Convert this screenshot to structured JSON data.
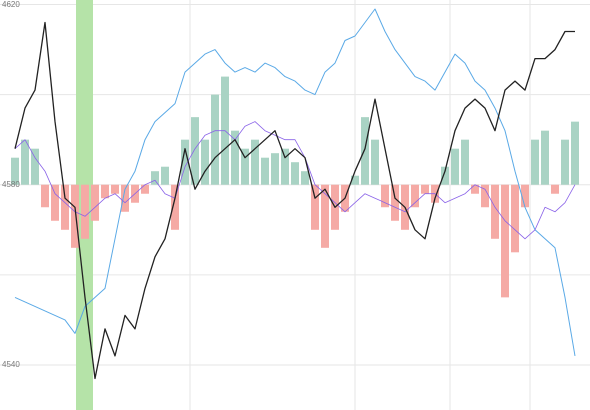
{
  "chart_data": {
    "type": "line",
    "xlim": [
      -1.5,
      57.5
    ],
    "ylim": [
      4530,
      4621
    ],
    "yticks": [
      4540,
      4580,
      4620
    ],
    "grid_yticks": [
      4540,
      4560,
      4580,
      4600,
      4620
    ],
    "xgrid": [
      17.5,
      34,
      43.5,
      51.5
    ],
    "highlight": {
      "range": [
        6.1,
        7.8
      ],
      "color": "#b5e3a8"
    },
    "bars": {
      "base": 4580,
      "up_color": "#a9d3c4",
      "down_color": "#f5aaa5",
      "values": [
        4586,
        4590,
        4588,
        4575,
        4572,
        4570,
        4566,
        4568,
        4572,
        4577,
        4578,
        4574,
        4576,
        4578,
        4583,
        4584,
        4570,
        4590,
        4595,
        4590,
        4600,
        4604,
        4592,
        4588,
        4590,
        4586,
        4587,
        4588,
        4585,
        4583,
        4570,
        4566,
        4570,
        4574,
        4582,
        4595,
        4590,
        4575,
        4572,
        4570,
        4575,
        4578,
        4576,
        4584,
        4588,
        4590,
        4578,
        4575,
        4568,
        4555,
        4565,
        4575,
        4590,
        4592,
        4578,
        4590,
        4594
      ]
    },
    "series": [
      {
        "color": "#5aa9e6",
        "width": 1,
        "values": [
          4555,
          4554,
          4553,
          4552,
          4551,
          4550,
          4547,
          4553,
          4555,
          4557,
          4568,
          4579,
          4583,
          4590,
          4594,
          4596,
          4598,
          4605,
          4607,
          4609,
          4610,
          4607,
          4605,
          4606,
          4605,
          4607,
          4606,
          4604,
          4603,
          4601,
          4600,
          4605,
          4607,
          4612,
          4613,
          4616,
          4619,
          4614,
          4610,
          4607,
          4604,
          4603,
          4601,
          4605,
          4609,
          4607,
          4603,
          4601,
          4597,
          4592,
          4583,
          4575,
          4570,
          4568,
          4566,
          4555,
          4542
        ]
      },
      {
        "color": "#8a63e8",
        "width": 0.8,
        "values": [
          4588,
          4590,
          4586,
          4583,
          4578,
          4576,
          4574,
          4573,
          4575,
          4577,
          4578,
          4576,
          4578,
          4580,
          4581,
          4578,
          4577,
          4584,
          4588,
          4591,
          4592,
          4592,
          4590,
          4593,
          4594,
          4592,
          4591,
          4590,
          4590,
          4586,
          4580,
          4578,
          4576,
          4574,
          4576,
          4578,
          4577,
          4576,
          4575,
          4574,
          4576,
          4578,
          4578,
          4576,
          4577,
          4578,
          4580,
          4579,
          4575,
          4572,
          4570,
          4568,
          4570,
          4575,
          4574,
          4576,
          4580
        ]
      },
      {
        "color": "#222222",
        "width": 1.3,
        "values": [
          4588,
          4597,
          4601,
          4616,
          4594,
          4577,
          4575,
          4555,
          4537,
          4548,
          4542,
          4551,
          4548,
          4557,
          4564,
          4568,
          4577,
          4588,
          4579,
          4583,
          4586,
          4588,
          4590,
          4586,
          4588,
          4590,
          4592,
          4586,
          4588,
          4586,
          4577,
          4579,
          4575,
          4577,
          4583,
          4588,
          4599,
          4588,
          4577,
          4575,
          4570,
          4568,
          4577,
          4583,
          4592,
          4597,
          4599,
          4597,
          4592,
          4601,
          4603,
          4601,
          4608,
          4608,
          4610,
          4614,
          4614
        ]
      }
    ]
  }
}
